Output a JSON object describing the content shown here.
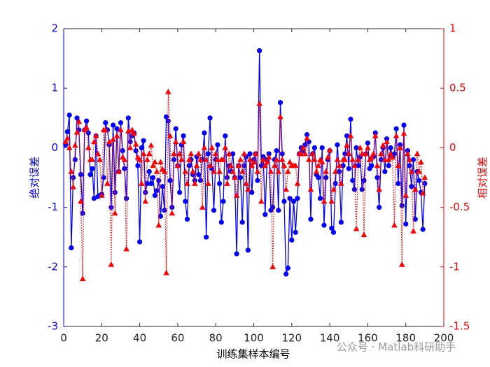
{
  "chart_data": {
    "type": "line",
    "xlabel": "训练集样本编号",
    "ylabel": "绝对误差",
    "y2label": "相对误差",
    "watermark": "公众号 · Matlab科研助手",
    "xlim": [
      0,
      200
    ],
    "xticks": [
      0,
      20,
      40,
      60,
      80,
      100,
      120,
      140,
      160,
      180,
      200
    ],
    "ylim": [
      -3,
      2
    ],
    "yticks": [
      -3,
      -2,
      -1,
      0,
      1,
      2
    ],
    "y2lim": [
      -1.5,
      1
    ],
    "y2ticks": [
      -1.5,
      -1,
      -0.5,
      0,
      0.5,
      1
    ],
    "ycolor": "#0000ff",
    "y2color": "#ff0000",
    "x": [
      1,
      2,
      3,
      4,
      5,
      6,
      7,
      8,
      9,
      10,
      11,
      12,
      13,
      14,
      15,
      16,
      17,
      18,
      19,
      20,
      21,
      22,
      23,
      24,
      25,
      26,
      27,
      28,
      29,
      30,
      31,
      32,
      33,
      34,
      35,
      36,
      37,
      38,
      39,
      40,
      41,
      42,
      43,
      44,
      45,
      46,
      47,
      48,
      49,
      50,
      51,
      52,
      53,
      54,
      55,
      56,
      57,
      58,
      59,
      60,
      61,
      62,
      63,
      64,
      65,
      66,
      67,
      68,
      69,
      70,
      71,
      72,
      73,
      74,
      75,
      76,
      77,
      78,
      79,
      80,
      81,
      82,
      83,
      84,
      85,
      86,
      87,
      88,
      89,
      90,
      91,
      92,
      93,
      94,
      95,
      96,
      97,
      98,
      99,
      100,
      101,
      102,
      103,
      104,
      105,
      106,
      107,
      108,
      109,
      110,
      111,
      112,
      113,
      114,
      115,
      116,
      117,
      118,
      119,
      120,
      121,
      122,
      123,
      124,
      125,
      126,
      127,
      128,
      129,
      130,
      131,
      132,
      133,
      134,
      135,
      136,
      137,
      138,
      139,
      140,
      141,
      142,
      143,
      144,
      145,
      146,
      147,
      148,
      149,
      150,
      151,
      152,
      153,
      154,
      155,
      156,
      157,
      158,
      159,
      160,
      161,
      162,
      163,
      164,
      165,
      166,
      167,
      168,
      169,
      170,
      171,
      172,
      173,
      174,
      175,
      176,
      177,
      178,
      179,
      180,
      181,
      182,
      183,
      184,
      185,
      186,
      187,
      188,
      189,
      190
    ],
    "series": [
      {
        "color": "#0000ff",
        "marker": "circle",
        "linestyle": "solid",
        "values": [
          0.05,
          0.27,
          0.55,
          -1.68,
          -0.5,
          -0.2,
          0.5,
          0.3,
          -0.45,
          -1.1,
          0.3,
          0.45,
          0.25,
          -0.45,
          -0.35,
          -0.85,
          0.2,
          -0.82,
          -0.8,
          -0.78,
          -0.5,
          0.42,
          0.3,
          0.05,
          -1.0,
          0.38,
          -0.75,
          0.32,
          -0.4,
          0.42,
          -0.05,
          -0.35,
          -0.85,
          0.5,
          0.1,
          0.2,
          0.25,
          -0.05,
          -0.3,
          -1.58,
          0.0,
          0.12,
          -0.75,
          -0.6,
          -0.4,
          -0.6,
          -0.5,
          -0.8,
          -0.72,
          -0.55,
          -1.15,
          -0.65,
          -1.05,
          0.52,
          0.45,
          -0.55,
          -1.0,
          -0.2,
          0.32,
          -0.3,
          -0.75,
          0.05,
          0.2,
          -0.9,
          -1.2,
          -0.3,
          -0.2,
          -0.45,
          -0.55,
          -0.15,
          -0.45,
          -0.55,
          -0.2,
          0.25,
          -1.5,
          -0.1,
          0.5,
          -0.35,
          -1.05,
          -0.2,
          0.05,
          -0.6,
          -1.25,
          -0.9,
          0.2,
          -0.5,
          -0.3,
          -0.4,
          -0.1,
          -0.5,
          -1.78,
          -0.3,
          -0.5,
          -1.25,
          -0.3,
          -0.15,
          -1.72,
          -0.1,
          -0.75,
          -0.2,
          -0.1,
          -0.55,
          1.63,
          -0.3,
          -0.15,
          -1.12,
          -0.2,
          -0.1,
          -1.05,
          -1.0,
          -0.2,
          -0.05,
          -1.05,
          0.76,
          -0.1,
          -0.9,
          -2.12,
          -2.02,
          -0.85,
          -1.55,
          -0.9,
          -1.42,
          -0.85,
          -0.1,
          0.0,
          -0.05,
          0.05,
          0.22,
          0.1,
          -1.2,
          -0.1,
          0.0,
          -0.45,
          -0.5,
          -0.85,
          0.0,
          -1.3,
          -0.5,
          -0.2,
          -0.05,
          -1.35,
          -1.42,
          -0.6,
          0.05,
          -0.4,
          -1.25,
          -0.3,
          -0.1,
          0.2,
          -0.35,
          0.48,
          -0.55,
          -0.7,
          0.0,
          -0.3,
          -0.15,
          -0.7,
          -0.55,
          -0.1,
          0.08,
          -0.35,
          -0.3,
          -0.15,
          0.25,
          -0.5,
          -1.0,
          -0.2,
          0.0,
          -0.4,
          0.15,
          -0.3,
          0.0,
          -0.15,
          -0.1,
          0.32,
          -0.6,
          0.05,
          -0.97,
          0.38,
          -1.28,
          -0.05,
          -0.3,
          -0.65,
          -0.2,
          -1.2,
          -0.4,
          -0.55,
          -0.75,
          -1.37,
          -0.6
        ]
      },
      {
        "color": "#ff0000",
        "marker": "triangle",
        "linestyle": "dotted",
        "axis": "y2",
        "values": [
          0.05,
          0.08,
          0.0,
          -0.2,
          -0.33,
          0.02,
          0.13,
          0.22,
          -0.45,
          -1.1,
          0.15,
          0.17,
          0.0,
          -0.1,
          -0.1,
          0.05,
          0.1,
          -0.05,
          -0.1,
          -0.4,
          0.15,
          0.15,
          -0.3,
          0.05,
          -0.98,
          0.07,
          -0.55,
          0.1,
          -0.2,
          0.15,
          -0.08,
          -0.1,
          -0.85,
          0.14,
          0.0,
          0.15,
          0.12,
          0.03,
          -0.08,
          -0.1,
          -0.3,
          -0.05,
          -0.45,
          -0.1,
          -0.05,
          0.02,
          -0.15,
          -0.12,
          -0.2,
          -0.65,
          -0.12,
          -0.18,
          -0.2,
          -1.05,
          0.47,
          0.1,
          -0.55,
          -0.05,
          0.05,
          -0.15,
          -0.05,
          -0.1,
          0.05,
          -0.2,
          -0.3,
          -0.1,
          -0.05,
          -0.2,
          -0.3,
          -0.15,
          -0.05,
          -0.1,
          -0.5,
          0.0,
          -0.1,
          -0.3,
          -0.15,
          0.0,
          -0.2,
          -0.05,
          -0.1,
          -0.2,
          -0.1,
          -0.1,
          0.0,
          -0.3,
          -0.05,
          -0.15,
          -0.2,
          -0.25,
          -0.4,
          -0.15,
          -0.1,
          -0.2,
          -0.05,
          -0.3,
          -0.35,
          -0.1,
          -0.15,
          -0.12,
          -0.05,
          -0.2,
          0.37,
          -0.45,
          -0.1,
          -0.15,
          -0.12,
          -0.08,
          -0.2,
          -1.0,
          -0.15,
          -0.1,
          -0.2,
          0.26,
          -0.1,
          -0.15,
          -0.35,
          -0.2,
          -0.12,
          -0.15,
          -0.15,
          -0.15,
          -0.3,
          -0.05,
          -0.05,
          0.0,
          -0.05,
          0.08,
          -0.1,
          -0.35,
          -0.05,
          -0.1,
          -0.2,
          -0.15,
          -0.1,
          -0.12,
          -0.45,
          -0.2,
          -0.08,
          -0.02,
          -0.45,
          -0.35,
          -0.2,
          -0.1,
          -0.15,
          -0.3,
          -0.1,
          -0.1,
          0.02,
          -0.05,
          0.1,
          -0.1,
          -0.15,
          -0.68,
          -0.1,
          0.0,
          -0.05,
          -0.73,
          -0.05,
          0.0,
          -0.1,
          -0.08,
          -0.05,
          0.1,
          -0.15,
          -0.35,
          -0.05,
          0.02,
          -0.1,
          0.05,
          -0.1,
          -0.05,
          -0.08,
          -0.65,
          0.1,
          -0.15,
          0.0,
          -0.98,
          0.12,
          -0.4,
          -0.05,
          -0.1,
          -0.2,
          -0.7,
          -0.35,
          -0.05,
          -0.2,
          -0.12,
          -0.38,
          -0.25
        ]
      }
    ]
  }
}
